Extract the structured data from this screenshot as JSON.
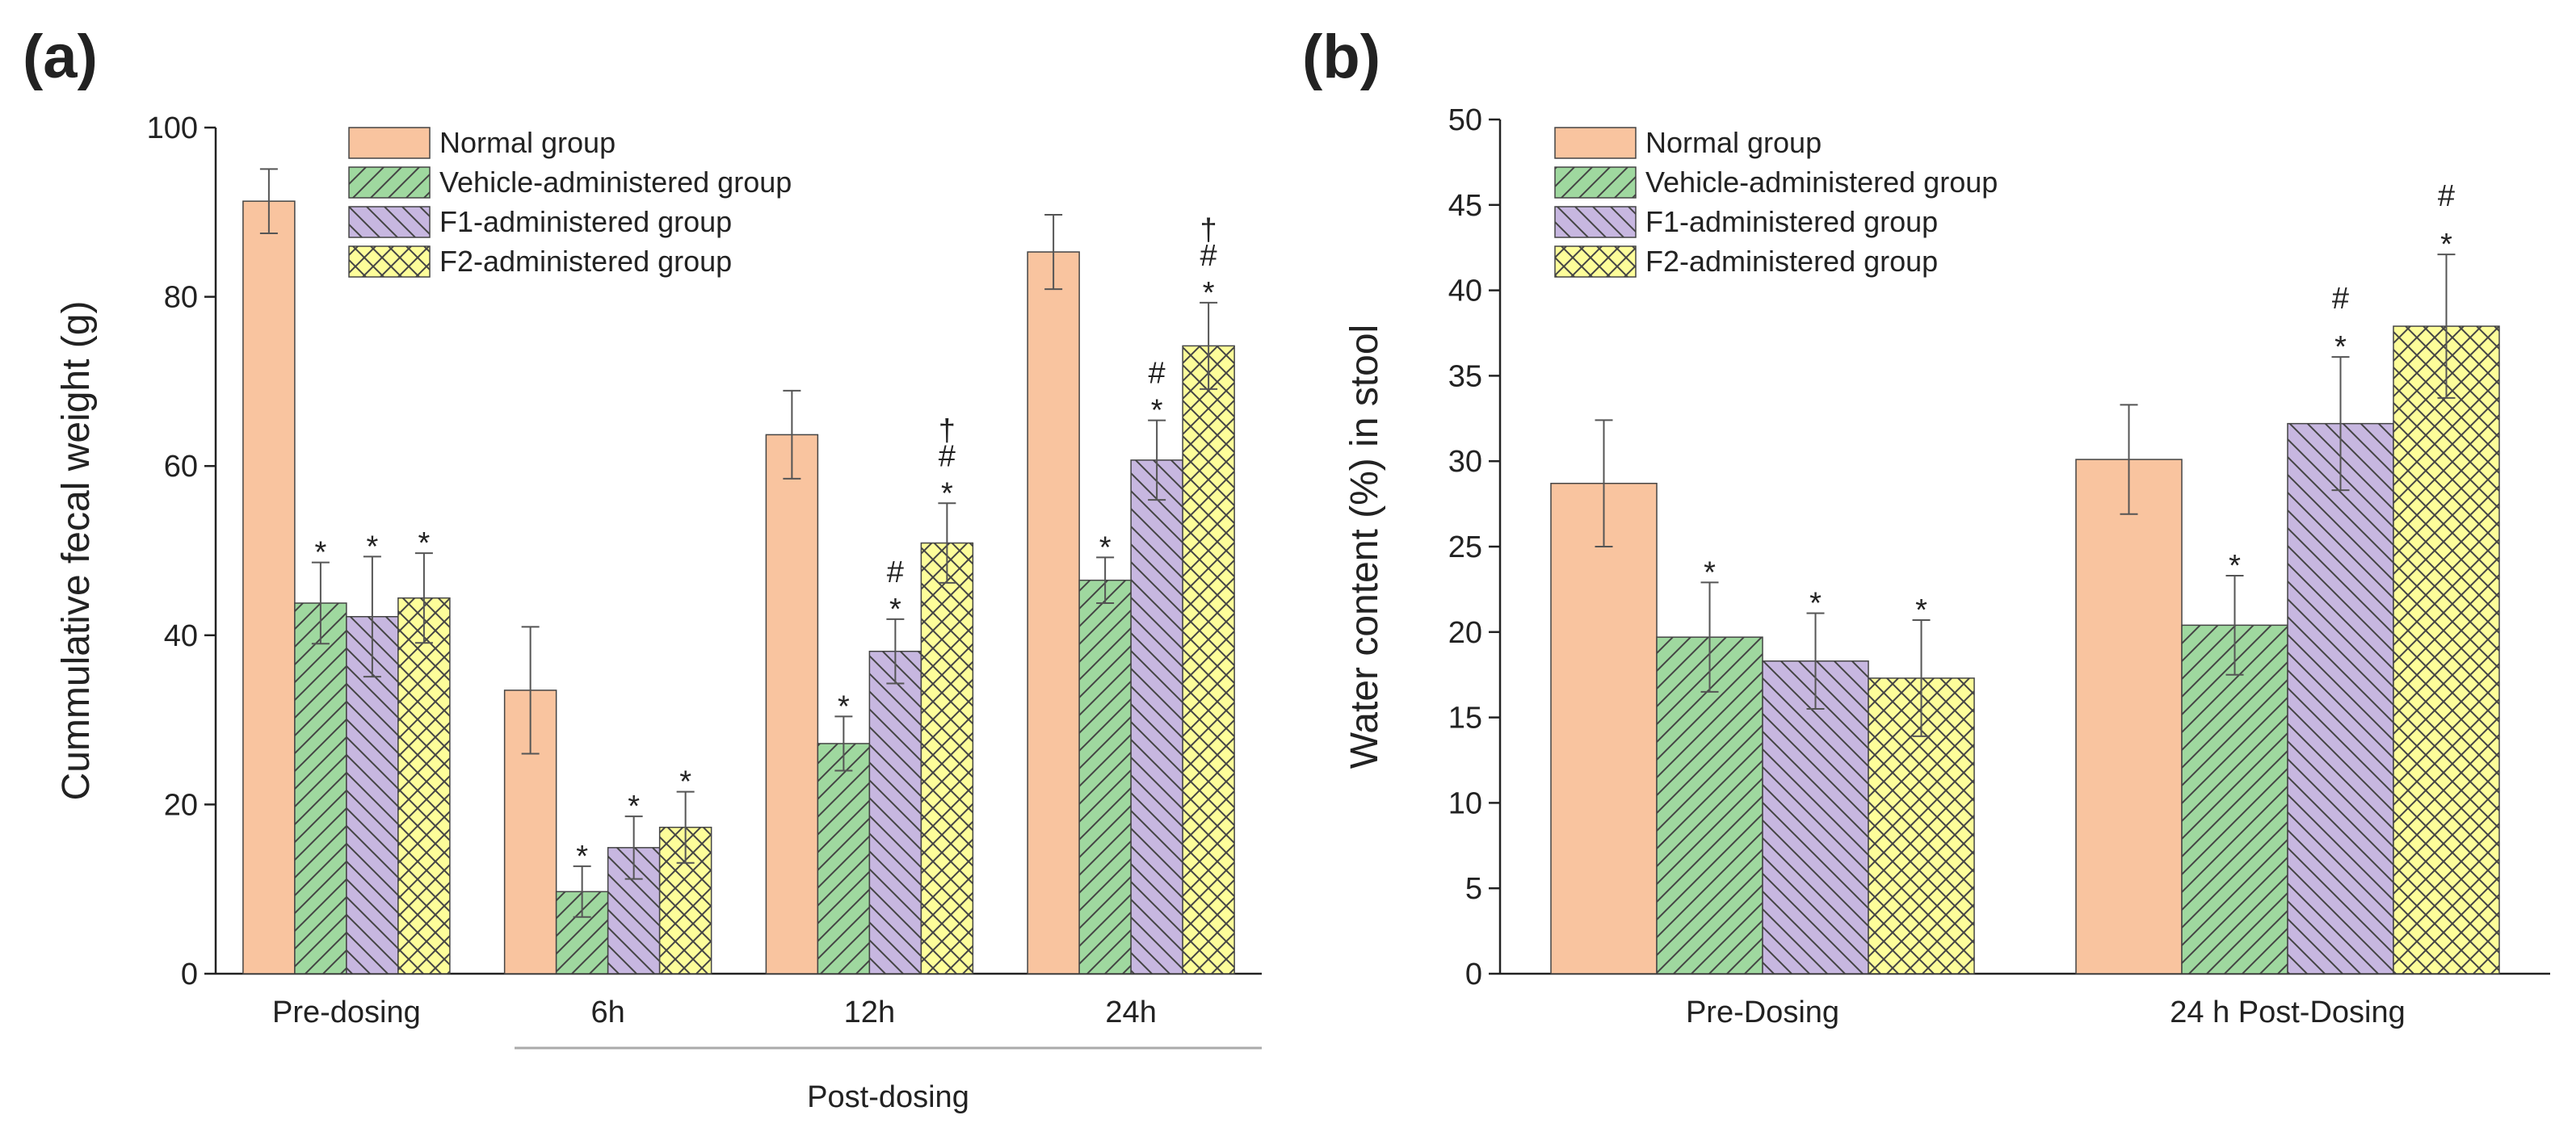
{
  "colors": {
    "normal": "#f9c49f",
    "vehicle": "#9fd89f",
    "f1": "#c7b7e0",
    "f2": "#fdfd9a",
    "edge": "#444444",
    "hatch": "#444444"
  },
  "chart_data": [
    {
      "type": "bar",
      "panel_label": "(a)",
      "ylabel": "Cummulative fecal weight (g)",
      "xlabel": "",
      "ylim": [
        0,
        100
      ],
      "yticks": [
        0,
        20,
        40,
        60,
        80,
        100
      ],
      "categories": [
        "Pre-dosing",
        "6h",
        "12h",
        "24h"
      ],
      "group_label": "Post-dosing",
      "grid": false,
      "legend_position": "top-left",
      "series": [
        {
          "name": "Normal group",
          "key": "normal",
          "pattern": "none",
          "values": [
            91.3,
            33.5,
            63.7,
            85.3
          ],
          "errors": [
            3.8,
            7.5,
            5.2,
            4.4
          ],
          "annotations": [
            "",
            "",
            "",
            ""
          ]
        },
        {
          "name": "Vehicle-administered group",
          "key": "vehicle",
          "pattern": "diag-up",
          "values": [
            43.8,
            9.7,
            27.2,
            46.5
          ],
          "errors": [
            4.8,
            3.0,
            3.2,
            2.7
          ],
          "annotations": [
            "*",
            "*",
            "*",
            "*"
          ]
        },
        {
          "name": "F1-administered group",
          "key": "f1",
          "pattern": "diag-down",
          "values": [
            42.2,
            14.9,
            38.1,
            60.7
          ],
          "errors": [
            7.1,
            3.7,
            3.8,
            4.7
          ],
          "annotations": [
            "*",
            "*",
            "#\n*",
            "#\n*"
          ]
        },
        {
          "name": "F2-administered group",
          "key": "f2",
          "pattern": "cross",
          "values": [
            44.4,
            17.3,
            50.9,
            74.2
          ],
          "errors": [
            5.3,
            4.2,
            4.7,
            5.1
          ],
          "annotations": [
            "*",
            "*",
            "†\n#\n*",
            "†\n#\n*"
          ]
        }
      ]
    },
    {
      "type": "bar",
      "panel_label": "(b)",
      "ylabel": "Water content (%) in stool",
      "xlabel": "",
      "ylim": [
        0,
        50
      ],
      "yticks": [
        0,
        5,
        10,
        15,
        20,
        25,
        30,
        35,
        40,
        45,
        50
      ],
      "categories": [
        "Pre-Dosing",
        "24 h Post-Dosing"
      ],
      "grid": false,
      "legend_position": "top-left",
      "series": [
        {
          "name": "Normal group",
          "key": "normal",
          "pattern": "none",
          "values": [
            28.7,
            30.1
          ],
          "errors": [
            3.7,
            3.2
          ],
          "annotations": [
            "",
            ""
          ]
        },
        {
          "name": "Vehicle-administered group",
          "key": "vehicle",
          "pattern": "diag-up",
          "values": [
            19.7,
            20.4
          ],
          "errors": [
            3.2,
            2.9
          ],
          "annotations": [
            "*",
            "*"
          ]
        },
        {
          "name": "F1-administered group",
          "key": "f1",
          "pattern": "diag-down",
          "values": [
            18.3,
            32.2
          ],
          "errors": [
            2.8,
            3.9
          ],
          "annotations": [
            "*",
            "#\n*"
          ]
        },
        {
          "name": "F2-administered group",
          "key": "f2",
          "pattern": "cross",
          "values": [
            17.3,
            37.9
          ],
          "errors": [
            3.4,
            4.2
          ],
          "annotations": [
            "*",
            "#\n*"
          ]
        }
      ]
    }
  ]
}
